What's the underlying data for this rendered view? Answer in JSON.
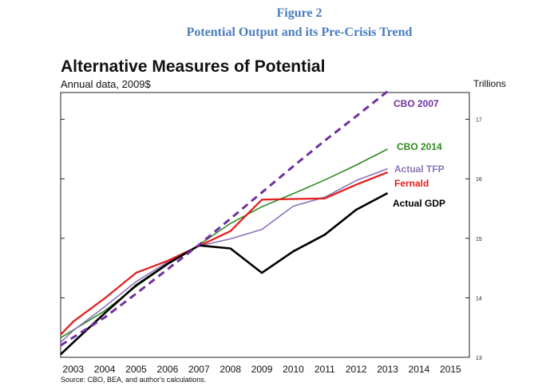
{
  "figure": {
    "number": "Figure 2",
    "subtitle": "Potential Output and its Pre-Crisis Trend"
  },
  "chart_data": {
    "type": "line",
    "title": "Alternative Measures of Potential",
    "subtitle": "Annual data, 2009$",
    "units": "Trillions",
    "source": "Source: CBO, BEA, and author's calculations.",
    "x_ticks": [
      2003,
      2004,
      2005,
      2006,
      2007,
      2008,
      2009,
      2010,
      2011,
      2012,
      2013,
      2014,
      2015
    ],
    "x_tick_labels": [
      "2003",
      "2004",
      "2005",
      "2006",
      "2007",
      "2008",
      "2009",
      "2010",
      "2011",
      "2012",
      "2013",
      "2014",
      "2015"
    ],
    "xlim": [
      2002.6,
      2015.6
    ],
    "ylim": [
      13,
      17.45
    ],
    "y_ticks": [
      13,
      14,
      15,
      16,
      17
    ],
    "y_tick_labels": [
      "13",
      "14",
      "15",
      "16",
      "17"
    ],
    "y_axis_side": "right",
    "grid": false,
    "series": [
      {
        "name": "CBO 2007",
        "label": "CBO 2007",
        "color": "#7030a0",
        "dashed": true,
        "x": [
          2002.6,
          2004,
          2005,
          2006,
          2007,
          2008,
          2009,
          2010,
          2011,
          2012,
          2013
        ],
        "y": [
          13.2,
          13.67,
          14.07,
          14.48,
          14.89,
          15.33,
          15.77,
          16.21,
          16.64,
          17.05,
          17.47
        ]
      },
      {
        "name": "CBO 2014",
        "label": "CBO 2014",
        "color": "#2e8b1f",
        "dashed": false,
        "x": [
          2002.6,
          2004,
          2005,
          2006,
          2007,
          2008,
          2009,
          2010,
          2011,
          2012,
          2013
        ],
        "y": [
          13.33,
          13.78,
          14.19,
          14.56,
          14.89,
          15.25,
          15.53,
          15.75,
          15.98,
          16.23,
          16.5
        ]
      },
      {
        "name": "Actual TFP",
        "label": "Actual TFP",
        "color": "#8b73b8",
        "dashed": false,
        "x": [
          2002.6,
          2003,
          2004,
          2005,
          2006,
          2007,
          2008,
          2009,
          2010,
          2011,
          2012,
          2013
        ],
        "y": [
          13.25,
          13.45,
          13.85,
          14.27,
          14.6,
          14.87,
          14.99,
          15.15,
          15.54,
          15.69,
          15.97,
          16.17
        ]
      },
      {
        "name": "Fernald",
        "label": "Fernald",
        "color": "#e32020",
        "dashed": false,
        "x": [
          2002.6,
          2003,
          2004,
          2005,
          2006,
          2007,
          2008,
          2009,
          2010,
          2011,
          2012,
          2013
        ],
        "y": [
          13.38,
          13.6,
          13.99,
          14.42,
          14.62,
          14.87,
          15.12,
          15.65,
          15.66,
          15.67,
          15.9,
          16.11
        ]
      },
      {
        "name": "Actual GDP",
        "label": "Actual GDP",
        "color": "#000000",
        "dashed": false,
        "x": [
          2002.6,
          2003,
          2004,
          2005,
          2006,
          2007,
          2008,
          2009,
          2010,
          2011,
          2012,
          2013
        ],
        "y": [
          13.05,
          13.25,
          13.74,
          14.21,
          14.57,
          14.88,
          14.83,
          14.42,
          14.78,
          15.06,
          15.48,
          15.76
        ]
      }
    ]
  }
}
